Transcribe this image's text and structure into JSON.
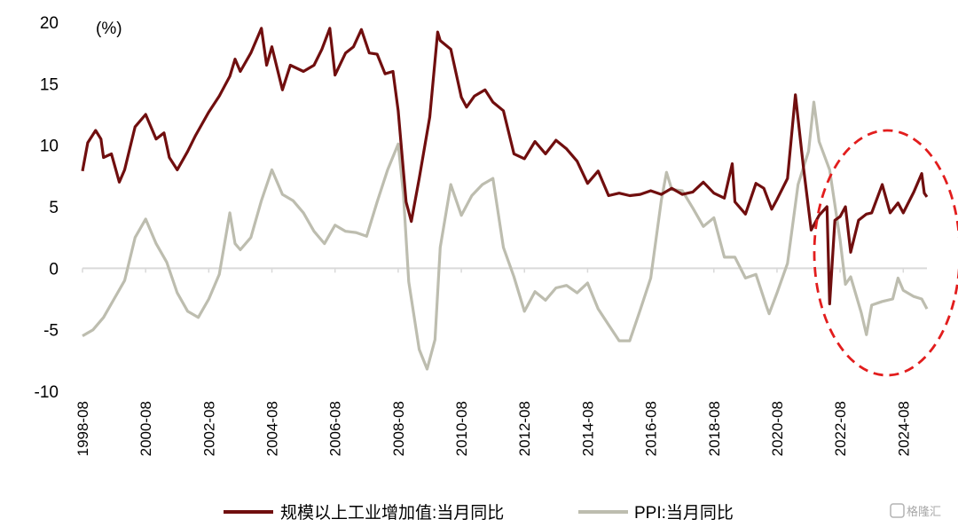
{
  "chart_data": {
    "type": "line",
    "unit_label": "(%)",
    "ylim": [
      -10,
      20
    ],
    "yticks": [
      20,
      15,
      10,
      5,
      0,
      -5,
      -10
    ],
    "xlim": [
      "1998-08",
      "2025-05"
    ],
    "xticks": [
      "1998-08",
      "2000-08",
      "2002-08",
      "2004-08",
      "2006-08",
      "2008-08",
      "2010-08",
      "2012-08",
      "2014-08",
      "2016-08",
      "2018-08",
      "2020-08",
      "2022-08",
      "2024-08"
    ],
    "legend_position": "bottom",
    "annotation": "red dashed ellipse highlighting 2022–2025",
    "series": [
      {
        "name": "规模以上工业增加值:当月同比",
        "color": "#700e0e",
        "points": [
          [
            "1998-08",
            7.9
          ],
          [
            "1998-10",
            10.2
          ],
          [
            "1999-01",
            11.2
          ],
          [
            "1999-03",
            10.5
          ],
          [
            "1999-04",
            9.0
          ],
          [
            "1999-07",
            9.3
          ],
          [
            "1999-10",
            7.0
          ],
          [
            "1999-12",
            8.0
          ],
          [
            "2000-04",
            11.5
          ],
          [
            "2000-08",
            12.5
          ],
          [
            "2000-12",
            10.5
          ],
          [
            "2001-03",
            11.0
          ],
          [
            "2001-05",
            9.0
          ],
          [
            "2001-08",
            8.0
          ],
          [
            "2001-12",
            9.5
          ],
          [
            "2002-03",
            10.8
          ],
          [
            "2002-08",
            12.7
          ],
          [
            "2002-12",
            14.0
          ],
          [
            "2003-04",
            15.6
          ],
          [
            "2003-06",
            17.0
          ],
          [
            "2003-08",
            16.0
          ],
          [
            "2003-12",
            17.5
          ],
          [
            "2004-04",
            19.5
          ],
          [
            "2004-06",
            16.5
          ],
          [
            "2004-08",
            18.0
          ],
          [
            "2004-12",
            14.5
          ],
          [
            "2005-03",
            16.5
          ],
          [
            "2005-08",
            16.0
          ],
          [
            "2005-12",
            16.5
          ],
          [
            "2006-03",
            17.8
          ],
          [
            "2006-06",
            19.5
          ],
          [
            "2006-08",
            15.7
          ],
          [
            "2006-12",
            17.5
          ],
          [
            "2007-03",
            18.0
          ],
          [
            "2007-06",
            19.4
          ],
          [
            "2007-09",
            17.5
          ],
          [
            "2007-12",
            17.4
          ],
          [
            "2008-03",
            15.8
          ],
          [
            "2008-06",
            16.0
          ],
          [
            "2008-08",
            12.8
          ],
          [
            "2008-11",
            5.4
          ],
          [
            "2009-01",
            3.8
          ],
          [
            "2009-04",
            7.3
          ],
          [
            "2009-08",
            12.3
          ],
          [
            "2009-11",
            19.2
          ],
          [
            "2009-12",
            18.5
          ],
          [
            "2010-04",
            17.8
          ],
          [
            "2010-08",
            13.9
          ],
          [
            "2010-10",
            13.1
          ],
          [
            "2011-01",
            14.0
          ],
          [
            "2011-05",
            14.5
          ],
          [
            "2011-08",
            13.5
          ],
          [
            "2011-12",
            12.8
          ],
          [
            "2012-04",
            9.3
          ],
          [
            "2012-08",
            8.9
          ],
          [
            "2012-12",
            10.3
          ],
          [
            "2013-04",
            9.3
          ],
          [
            "2013-08",
            10.4
          ],
          [
            "2013-12",
            9.7
          ],
          [
            "2014-04",
            8.7
          ],
          [
            "2014-08",
            6.9
          ],
          [
            "2014-12",
            7.9
          ],
          [
            "2015-04",
            5.9
          ],
          [
            "2015-08",
            6.1
          ],
          [
            "2015-12",
            5.9
          ],
          [
            "2016-04",
            6.0
          ],
          [
            "2016-08",
            6.3
          ],
          [
            "2016-12",
            6.0
          ],
          [
            "2017-04",
            6.5
          ],
          [
            "2017-08",
            6.0
          ],
          [
            "2017-12",
            6.2
          ],
          [
            "2018-04",
            7.0
          ],
          [
            "2018-08",
            6.1
          ],
          [
            "2018-12",
            5.7
          ],
          [
            "2019-03",
            8.5
          ],
          [
            "2019-04",
            5.4
          ],
          [
            "2019-08",
            4.4
          ],
          [
            "2019-12",
            6.9
          ],
          [
            "2020-03",
            6.5
          ],
          [
            "2020-06",
            4.8
          ],
          [
            "2020-08",
            5.6
          ],
          [
            "2020-12",
            7.3
          ],
          [
            "2021-03",
            14.1
          ],
          [
            "2021-06",
            8.3
          ],
          [
            "2021-09",
            3.1
          ],
          [
            "2021-12",
            4.3
          ],
          [
            "2022-03",
            5.0
          ],
          [
            "2022-04",
            -2.9
          ],
          [
            "2022-06",
            3.9
          ],
          [
            "2022-08",
            4.2
          ],
          [
            "2022-10",
            5.0
          ],
          [
            "2022-12",
            1.3
          ],
          [
            "2023-03",
            3.9
          ],
          [
            "2023-06",
            4.4
          ],
          [
            "2023-08",
            4.5
          ],
          [
            "2023-12",
            6.8
          ],
          [
            "2024-03",
            4.5
          ],
          [
            "2024-06",
            5.3
          ],
          [
            "2024-08",
            4.5
          ],
          [
            "2024-12",
            6.2
          ],
          [
            "2025-03",
            7.7
          ],
          [
            "2025-04",
            6.1
          ],
          [
            "2025-05",
            5.8
          ]
        ]
      },
      {
        "name": "PPI:当月同比",
        "color": "#bdbdaf",
        "points": [
          [
            "1998-08",
            -5.5
          ],
          [
            "1998-12",
            -5.0
          ],
          [
            "1999-04",
            -4.0
          ],
          [
            "1999-08",
            -2.5
          ],
          [
            "1999-12",
            -1.0
          ],
          [
            "2000-04",
            2.5
          ],
          [
            "2000-08",
            4.0
          ],
          [
            "2000-12",
            2.0
          ],
          [
            "2001-04",
            0.5
          ],
          [
            "2001-08",
            -2.0
          ],
          [
            "2001-12",
            -3.5
          ],
          [
            "2002-04",
            -4.0
          ],
          [
            "2002-08",
            -2.5
          ],
          [
            "2002-12",
            -0.5
          ],
          [
            "2003-04",
            4.5
          ],
          [
            "2003-06",
            2.0
          ],
          [
            "2003-08",
            1.5
          ],
          [
            "2003-12",
            2.5
          ],
          [
            "2004-04",
            5.5
          ],
          [
            "2004-08",
            8.0
          ],
          [
            "2004-12",
            6.0
          ],
          [
            "2005-04",
            5.5
          ],
          [
            "2005-08",
            4.5
          ],
          [
            "2005-12",
            3.0
          ],
          [
            "2006-04",
            2.0
          ],
          [
            "2006-08",
            3.5
          ],
          [
            "2006-12",
            3.0
          ],
          [
            "2007-04",
            2.9
          ],
          [
            "2007-08",
            2.6
          ],
          [
            "2007-12",
            5.4
          ],
          [
            "2008-04",
            8.0
          ],
          [
            "2008-08",
            10.1
          ],
          [
            "2008-10",
            6.0
          ],
          [
            "2008-12",
            -1.1
          ],
          [
            "2009-04",
            -6.6
          ],
          [
            "2009-07",
            -8.2
          ],
          [
            "2009-10",
            -5.8
          ],
          [
            "2009-12",
            1.7
          ],
          [
            "2010-04",
            6.8
          ],
          [
            "2010-08",
            4.3
          ],
          [
            "2010-12",
            5.9
          ],
          [
            "2011-04",
            6.8
          ],
          [
            "2011-08",
            7.3
          ],
          [
            "2011-12",
            1.7
          ],
          [
            "2012-04",
            -0.7
          ],
          [
            "2012-08",
            -3.5
          ],
          [
            "2012-12",
            -1.9
          ],
          [
            "2013-04",
            -2.6
          ],
          [
            "2013-08",
            -1.6
          ],
          [
            "2013-12",
            -1.4
          ],
          [
            "2014-04",
            -2.0
          ],
          [
            "2014-08",
            -1.2
          ],
          [
            "2014-12",
            -3.3
          ],
          [
            "2015-04",
            -4.6
          ],
          [
            "2015-08",
            -5.9
          ],
          [
            "2015-12",
            -5.9
          ],
          [
            "2016-04",
            -3.4
          ],
          [
            "2016-08",
            -0.8
          ],
          [
            "2016-12",
            5.5
          ],
          [
            "2017-02",
            7.8
          ],
          [
            "2017-04",
            6.4
          ],
          [
            "2017-08",
            6.3
          ],
          [
            "2017-12",
            4.9
          ],
          [
            "2018-04",
            3.4
          ],
          [
            "2018-08",
            4.1
          ],
          [
            "2018-12",
            0.9
          ],
          [
            "2019-04",
            0.9
          ],
          [
            "2019-08",
            -0.8
          ],
          [
            "2019-12",
            -0.5
          ],
          [
            "2020-04",
            -3.1
          ],
          [
            "2020-05",
            -3.7
          ],
          [
            "2020-08",
            -2.0
          ],
          [
            "2020-12",
            0.4
          ],
          [
            "2021-04",
            6.8
          ],
          [
            "2021-08",
            9.5
          ],
          [
            "2021-10",
            13.5
          ],
          [
            "2021-12",
            10.3
          ],
          [
            "2022-04",
            8.0
          ],
          [
            "2022-08",
            2.3
          ],
          [
            "2022-10",
            -1.3
          ],
          [
            "2022-12",
            -0.7
          ],
          [
            "2023-04",
            -3.6
          ],
          [
            "2023-06",
            -5.4
          ],
          [
            "2023-08",
            -3.0
          ],
          [
            "2023-12",
            -2.7
          ],
          [
            "2024-04",
            -2.5
          ],
          [
            "2024-06",
            -0.8
          ],
          [
            "2024-08",
            -1.8
          ],
          [
            "2024-12",
            -2.3
          ],
          [
            "2025-03",
            -2.5
          ],
          [
            "2025-05",
            -3.3
          ]
        ]
      }
    ]
  },
  "watermark": "格隆汇"
}
